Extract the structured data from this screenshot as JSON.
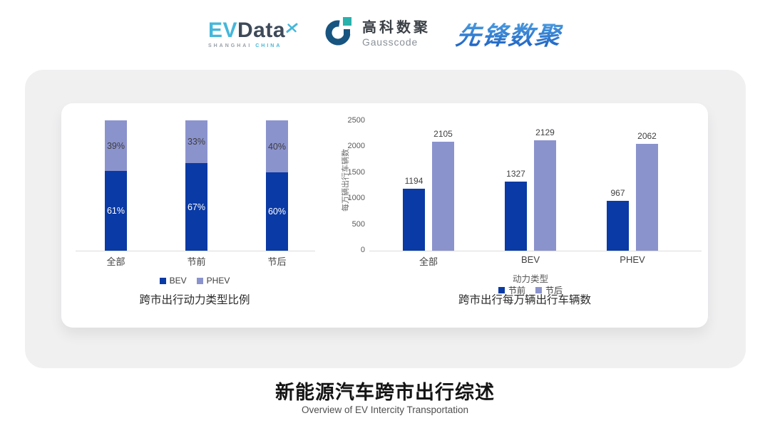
{
  "logos": {
    "evdata": {
      "ev": "EV",
      "word": "Data",
      "sub_gray": "SHANGHAI",
      "sub_cyan": "CHINA",
      "accent": "#45b7da",
      "dark": "#3e4a59"
    },
    "gausscode": {
      "cn": "高科数聚",
      "en": "Gausscode",
      "icon_dark": "#175480",
      "icon_teal": "#29b1ac"
    },
    "xianfeng": {
      "text": "先锋数聚",
      "color_top": "#4a9ade",
      "color_bottom": "#1e62c2"
    }
  },
  "chart_data": [
    {
      "type": "bar",
      "subtype": "stacked-percent",
      "title": "跨市出行动力类型比例",
      "categories": [
        "全部",
        "节前",
        "节后"
      ],
      "series": [
        {
          "name": "BEV",
          "values": [
            61,
            67,
            60
          ],
          "labels": [
            "61%",
            "67%",
            "60%"
          ],
          "color": "#0a3aa5",
          "label_color": "#ffffff"
        },
        {
          "name": "PHEV",
          "values": [
            39,
            33,
            40
          ],
          "labels": [
            "39%",
            "33%",
            "40%"
          ],
          "color": "#8b93cd",
          "label_color": "#3d3d3d"
        }
      ],
      "legend": [
        "BEV",
        "PHEV"
      ],
      "legend_position": "bottom",
      "ylim": [
        0,
        100
      ],
      "grid": false
    },
    {
      "type": "bar",
      "subtype": "grouped",
      "title": "跨市出行每万辆出行车辆数",
      "categories": [
        "全部",
        "BEV",
        "PHEV"
      ],
      "series": [
        {
          "name": "节前",
          "values": [
            1194,
            1327,
            967
          ],
          "color": "#0a3aa5"
        },
        {
          "name": "节后",
          "values": [
            2105,
            2129,
            2062
          ],
          "color": "#8b93cd"
        }
      ],
      "xlabel": "动力类型",
      "ylabel": "每万辆出行车辆数",
      "yticks": [
        0,
        500,
        1000,
        1500,
        2000,
        2500
      ],
      "ylim": [
        0,
        2500
      ],
      "legend": [
        "节前",
        "节后"
      ],
      "legend_position": "bottom",
      "grid": false
    }
  ],
  "footer": {
    "title": "新能源汽车跨市出行综述",
    "subtitle": "Overview of EV Intercity Transportation"
  }
}
